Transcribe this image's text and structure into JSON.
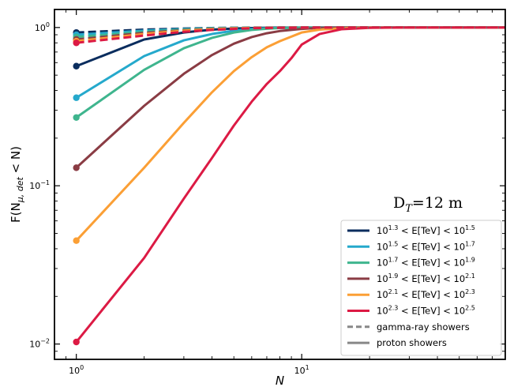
{
  "chart_data": {
    "type": "line",
    "x_scale": "log",
    "y_scale": "log",
    "xlabel": "N",
    "ylabel_parts": {
      "main": "F(N",
      "sub": "μ, det",
      "tail": " < N)"
    },
    "xlim": [
      0.8,
      80
    ],
    "ylim": [
      0.008,
      1.3
    ],
    "x_ticks": [
      {
        "value": 1,
        "base": "10",
        "exp": "0"
      },
      {
        "value": 10,
        "base": "10",
        "exp": "1"
      }
    ],
    "y_ticks": [
      {
        "value": 0.01,
        "base": "10",
        "exp": "−2"
      },
      {
        "value": 0.1,
        "base": "10",
        "exp": "−1"
      },
      {
        "value": 1,
        "base": "10",
        "exp": "0"
      }
    ],
    "annotation": {
      "text": "D",
      "sub": "T",
      "rest": "=12 m"
    },
    "legend_position": "lower right",
    "legend": [
      {
        "kind": "series",
        "color": "#0a2d5e",
        "label": [
          "10",
          "1.3",
          " < E[TeV] < 10",
          "1.5"
        ]
      },
      {
        "kind": "series",
        "color": "#25a9cc",
        "label": [
          "10",
          "1.5",
          " < E[TeV] < 10",
          "1.7"
        ]
      },
      {
        "kind": "series",
        "color": "#3fb58e",
        "label": [
          "10",
          "1.7",
          " < E[TeV] < 10",
          "1.9"
        ]
      },
      {
        "kind": "series",
        "color": "#8a3c44",
        "label": [
          "10",
          "1.9",
          " < E[TeV] < 10",
          "2.1"
        ]
      },
      {
        "kind": "series",
        "color": "#fb9f35",
        "label": [
          "10",
          "2.1",
          " < E[TeV] < 10",
          "2.3"
        ]
      },
      {
        "kind": "series",
        "color": "#dc1a44",
        "label": [
          "10",
          "2.3",
          " < E[TeV] < 10",
          "2.5"
        ]
      },
      {
        "kind": "style",
        "color": "#888888",
        "dash": true,
        "text": "gamma-ray showers"
      },
      {
        "kind": "style",
        "color": "#888888",
        "dash": false,
        "text": "proton showers"
      }
    ],
    "series": [
      {
        "color": "#0a2d5e",
        "style": "proton",
        "x": [
          1,
          2,
          3,
          4,
          5,
          6,
          7,
          8,
          10,
          15,
          80
        ],
        "y": [
          0.57,
          0.84,
          0.93,
          0.97,
          0.985,
          0.993,
          0.997,
          0.999,
          1.0,
          1.0,
          1.0
        ]
      },
      {
        "color": "#25a9cc",
        "style": "proton",
        "x": [
          1,
          2,
          3,
          4,
          5,
          6,
          7,
          8,
          10,
          15,
          80
        ],
        "y": [
          0.36,
          0.66,
          0.83,
          0.91,
          0.955,
          0.978,
          0.99,
          0.995,
          0.999,
          1.0,
          1.0
        ]
      },
      {
        "color": "#3fb58e",
        "style": "proton",
        "x": [
          1,
          2,
          3,
          4,
          5,
          6,
          7,
          8,
          10,
          15,
          80
        ],
        "y": [
          0.27,
          0.54,
          0.74,
          0.86,
          0.93,
          0.965,
          0.983,
          0.992,
          0.998,
          1.0,
          1.0
        ]
      },
      {
        "color": "#8a3c44",
        "style": "proton",
        "x": [
          1,
          2,
          3,
          4,
          5,
          6,
          7,
          8,
          10,
          12,
          15,
          80
        ],
        "y": [
          0.13,
          0.32,
          0.51,
          0.67,
          0.79,
          0.87,
          0.92,
          0.95,
          0.98,
          0.995,
          1.0,
          1.0
        ]
      },
      {
        "color": "#fb9f35",
        "style": "proton",
        "x": [
          1,
          2,
          3,
          4,
          5,
          6,
          7,
          8,
          10,
          12,
          15,
          20,
          80
        ],
        "y": [
          0.045,
          0.13,
          0.25,
          0.39,
          0.53,
          0.65,
          0.75,
          0.82,
          0.93,
          0.97,
          0.99,
          1.0,
          1.0
        ]
      },
      {
        "color": "#dc1a44",
        "style": "proton",
        "x": [
          1,
          2,
          3,
          4,
          5,
          6,
          7,
          8,
          9,
          10,
          12,
          15,
          20,
          30,
          80
        ],
        "y": [
          0.0103,
          0.035,
          0.083,
          0.15,
          0.24,
          0.34,
          0.44,
          0.53,
          0.64,
          0.78,
          0.91,
          0.975,
          0.995,
          1.0,
          1.0
        ]
      },
      {
        "color": "#0a2d5e",
        "style": "gamma",
        "x": [
          1,
          2,
          3,
          4,
          5,
          6,
          8,
          10,
          80
        ],
        "y": [
          0.93,
          0.97,
          0.985,
          0.993,
          0.997,
          0.999,
          1.0,
          1.0,
          1.0
        ]
      },
      {
        "color": "#25a9cc",
        "style": "gamma",
        "x": [
          1,
          2,
          3,
          4,
          5,
          6,
          8,
          10,
          80
        ],
        "y": [
          0.9,
          0.955,
          0.978,
          0.99,
          0.995,
          0.998,
          1.0,
          1.0,
          1.0
        ]
      },
      {
        "color": "#3fb58e",
        "style": "gamma",
        "x": [
          1,
          2,
          3,
          4,
          5,
          6,
          8,
          10,
          80
        ],
        "y": [
          0.87,
          0.94,
          0.97,
          0.985,
          0.993,
          0.997,
          0.999,
          1.0,
          1.0
        ]
      },
      {
        "color": "#8a3c44",
        "style": "gamma",
        "x": [
          1,
          2,
          3,
          4,
          5,
          6,
          8,
          10,
          80
        ],
        "y": [
          0.84,
          0.925,
          0.962,
          0.98,
          0.99,
          0.995,
          0.999,
          1.0,
          1.0
        ]
      },
      {
        "color": "#fb9f35",
        "style": "gamma",
        "x": [
          1,
          2,
          3,
          4,
          5,
          6,
          8,
          10,
          80
        ],
        "y": [
          0.82,
          0.91,
          0.955,
          0.977,
          0.988,
          0.994,
          0.998,
          1.0,
          1.0
        ]
      },
      {
        "color": "#dc1a44",
        "style": "gamma",
        "x": [
          1,
          2,
          3,
          4,
          5,
          6,
          8,
          10,
          12,
          80
        ],
        "y": [
          0.8,
          0.89,
          0.94,
          0.965,
          0.98,
          0.99,
          0.996,
          0.999,
          1.0,
          1.0
        ]
      }
    ]
  }
}
